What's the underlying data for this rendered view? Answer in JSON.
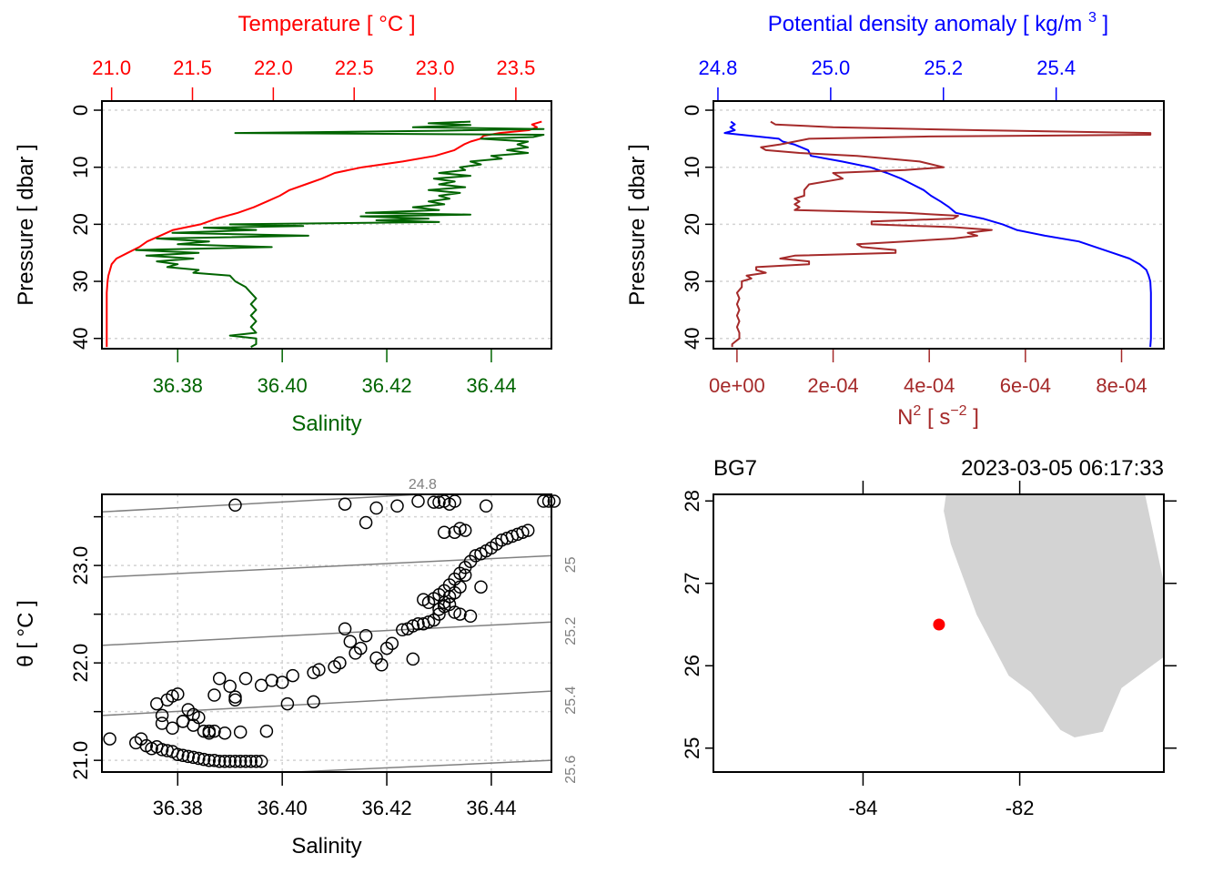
{
  "chart_data": [
    {
      "id": "profile_TS",
      "type": "line",
      "title": "",
      "top_axis": {
        "label": "Temperature [ °C ]",
        "ticks": [
          "21.0",
          "21.5",
          "22.0",
          "22.5",
          "23.0",
          "23.5"
        ],
        "range": [
          20.94,
          23.72
        ],
        "color": "#ff0000"
      },
      "bottom_axis": {
        "label": "Salinity",
        "ticks": [
          "36.38",
          "36.40",
          "36.42",
          "36.44"
        ],
        "range": [
          36.3655,
          36.4515
        ],
        "color": "#006400"
      },
      "ylabel": "Pressure [ dbar ]",
      "yticks": [
        "0",
        "10",
        "20",
        "30",
        "40"
      ],
      "ylim": [
        41.8,
        -1.6
      ],
      "grid": true,
      "series": [
        {
          "name": "Temperature",
          "color": "#ff0000",
          "axis": "top",
          "pressure": [
            2.0,
            2.5,
            3.0,
            3.5,
            4.0,
            4.5,
            5.0,
            5.5,
            6.0,
            7.0,
            8.0,
            9.0,
            10.0,
            11.0,
            12.0,
            13.0,
            14.0,
            15.0,
            16.0,
            17.0,
            18.0,
            19.0,
            20.0,
            21.0,
            22.0,
            23.0,
            24.0,
            25.0,
            26.0,
            27.0,
            28.0,
            29.0,
            30.0,
            32.0,
            35.0,
            38.0,
            40.0,
            41.5
          ],
          "values": [
            23.66,
            23.6,
            23.63,
            23.58,
            23.4,
            23.3,
            23.28,
            23.22,
            23.18,
            23.12,
            23.0,
            22.8,
            22.55,
            22.38,
            22.3,
            22.2,
            22.1,
            22.04,
            21.96,
            21.88,
            21.78,
            21.65,
            21.55,
            21.38,
            21.3,
            21.22,
            21.17,
            21.1,
            21.03,
            21.0,
            20.99,
            20.98,
            20.975,
            20.97,
            20.97,
            20.97,
            20.97,
            20.97
          ]
        },
        {
          "name": "Salinity",
          "color": "#006400",
          "axis": "bottom",
          "pressure": [
            2.0,
            2.3,
            2.6,
            3.0,
            3.3,
            3.6,
            4.0,
            4.3,
            4.7,
            5.0,
            5.5,
            6.0,
            6.5,
            7.0,
            7.5,
            8.0,
            8.5,
            9.0,
            9.5,
            10.0,
            10.5,
            11.0,
            11.5,
            12.0,
            12.5,
            13.0,
            13.5,
            14.0,
            14.5,
            15.0,
            15.5,
            16.0,
            16.5,
            17.0,
            17.5,
            18.0,
            18.3,
            18.6,
            19.0,
            19.3,
            19.6,
            20.0,
            20.3,
            20.6,
            21.0,
            21.5,
            22.0,
            22.5,
            23.0,
            23.5,
            24.0,
            24.5,
            25.0,
            25.5,
            26.0,
            26.5,
            27.0,
            27.5,
            28.0,
            28.5,
            29.0,
            30.0,
            31.0,
            32.0,
            33.0,
            34.0,
            35.0,
            36.0,
            37.0,
            38.0,
            39.0,
            39.5,
            40.0,
            41.0,
            41.5
          ],
          "values": [
            36.436,
            36.428,
            36.436,
            36.425,
            36.45,
            36.43,
            36.391,
            36.45,
            36.448,
            36.438,
            36.447,
            36.445,
            36.447,
            36.443,
            36.447,
            36.44,
            36.442,
            36.436,
            36.438,
            36.434,
            36.435,
            36.43,
            36.436,
            36.429,
            36.433,
            36.43,
            36.435,
            36.428,
            36.434,
            36.43,
            36.432,
            36.428,
            36.431,
            36.425,
            36.43,
            36.416,
            36.436,
            36.415,
            36.428,
            36.418,
            36.43,
            36.39,
            36.404,
            36.385,
            36.395,
            36.379,
            36.405,
            36.376,
            36.386,
            36.38,
            36.398,
            36.372,
            36.384,
            36.374,
            36.383,
            36.376,
            36.38,
            36.378,
            36.384,
            36.383,
            36.39,
            36.391,
            36.393,
            36.394,
            36.395,
            36.394,
            36.395,
            36.394,
            36.395,
            36.394,
            36.395,
            36.39,
            36.395,
            36.395,
            36.394
          ]
        }
      ]
    },
    {
      "id": "profile_sigma_N2",
      "type": "line",
      "title": "",
      "top_axis": {
        "label": "Potential density anomaly [ kg/m3 ]",
        "ticks": [
          "24.8",
          "25.0",
          "25.2",
          "25.4"
        ],
        "range": [
          24.792,
          25.591
        ],
        "color": "#0000ff"
      },
      "bottom_axis": {
        "label": "N2 [ s-2 ]",
        "ticks": [
          "0e+00",
          "2e-04",
          "4e-04",
          "6e-04",
          "8e-04"
        ],
        "range": [
          -4.9e-05,
          0.000888
        ],
        "color": "#a52a2a"
      },
      "ylabel": "Pressure [ dbar ]",
      "yticks": [
        "0",
        "10",
        "20",
        "30",
        "40"
      ],
      "ylim": [
        41.8,
        -1.6
      ],
      "grid": true,
      "series": [
        {
          "name": "Potential density anomaly",
          "color": "#0000ff",
          "axis": "top",
          "pressure": [
            2.0,
            2.5,
            3.0,
            3.5,
            4.0,
            4.5,
            5.0,
            5.5,
            6.0,
            7.0,
            8.0,
            9.0,
            10.0,
            11.0,
            12.0,
            13.0,
            14.0,
            15.0,
            16.0,
            17.0,
            18.0,
            19.0,
            20.0,
            21.0,
            22.0,
            23.0,
            24.0,
            25.0,
            26.0,
            27.0,
            28.0,
            29.0,
            30.0,
            32.0,
            35.0,
            38.0,
            40.0,
            41.5
          ],
          "values": [
            24.823,
            24.83,
            24.822,
            24.83,
            24.812,
            24.86,
            24.908,
            24.915,
            24.935,
            24.96,
            24.965,
            25.02,
            25.07,
            25.1,
            25.125,
            25.145,
            25.165,
            25.178,
            25.195,
            25.21,
            25.222,
            25.27,
            25.305,
            25.33,
            25.38,
            25.44,
            25.47,
            25.5,
            25.53,
            25.548,
            25.56,
            25.564,
            25.567,
            25.568,
            25.568,
            25.568,
            25.568,
            25.567
          ]
        },
        {
          "name": "N2",
          "color": "#a52a2a",
          "axis": "bottom",
          "pressure": [
            2.0,
            2.5,
            3.0,
            3.5,
            4.0,
            4.3,
            4.6,
            5.0,
            5.5,
            6.0,
            6.5,
            7.0,
            7.5,
            8.0,
            9.0,
            10.0,
            10.5,
            11.0,
            11.5,
            12.0,
            13.0,
            14.0,
            15.0,
            15.5,
            16.0,
            16.5,
            17.0,
            17.5,
            18.0,
            18.5,
            19.0,
            19.5,
            20.0,
            20.5,
            21.0,
            21.5,
            22.0,
            22.5,
            23.0,
            23.5,
            24.0,
            24.5,
            25.0,
            25.5,
            26.0,
            26.5,
            27.0,
            27.5,
            28.0,
            28.5,
            29.0,
            29.5,
            30.0,
            31.0,
            32.0,
            33.0,
            34.0,
            35.0,
            36.0,
            37.0,
            38.0,
            39.0,
            40.0,
            41.0,
            41.5
          ],
          "values": [
            7e-05,
            8e-05,
            0.0002,
            0.0005,
            0.00086,
            0.00086,
            0.0004,
            0.00015,
            0.00012,
            9e-05,
            5e-05,
            6e-05,
            0.00013,
            0.00025,
            0.00038,
            0.00043,
            0.00035,
            0.0002,
            0.00021,
            0.00022,
            0.00015,
            0.00014,
            0.00014,
            0.00012,
            0.00013,
            0.00012,
            0.00013,
            0.00012,
            0.00035,
            0.00046,
            0.00045,
            0.00028,
            0.00028,
            0.00045,
            0.00053,
            0.00048,
            0.0005,
            0.00045,
            0.00035,
            0.00025,
            0.00026,
            0.00033,
            0.00033,
            0.00012,
            9e-05,
            0.00015,
            0.00015,
            4e-05,
            4e-05,
            6e-05,
            2e-05,
            3e-05,
            1e-05,
            1e-05,
            0.0,
            5e-06,
            0.0,
            5e-06,
            0.0,
            5e-06,
            0.0,
            5e-06,
            5e-06,
            -1e-05,
            -1e-05
          ]
        }
      ]
    },
    {
      "id": "TS_diagram",
      "type": "scatter",
      "title": "",
      "xlabel": "Salinity",
      "ylabel": "θ [ °C ]",
      "xticks": [
        "36.38",
        "36.40",
        "36.42",
        "36.44"
      ],
      "yticks": [
        "21.0",
        "22.0",
        "23.0"
      ],
      "xlim": [
        36.3655,
        36.4515
      ],
      "ylim": [
        20.88,
        23.73
      ],
      "grid": true,
      "isopycnals": {
        "color": "#808080",
        "levels": [
          "24.8",
          "25",
          "25.2",
          "25.4",
          "25.6"
        ],
        "lines": [
          {
            "label": "24.8",
            "s": [
              36.3655,
              36.4265
            ],
            "theta": [
              23.55,
              23.73
            ]
          },
          {
            "label": "25",
            "s": [
              36.3655,
              36.4515
            ],
            "theta": [
              22.88,
              23.1
            ]
          },
          {
            "label": "25.2",
            "s": [
              36.3655,
              36.4515
            ],
            "theta": [
              22.18,
              22.42
            ]
          },
          {
            "label": "25.4",
            "s": [
              36.3655,
              36.4515
            ],
            "theta": [
              21.46,
              21.71
            ]
          },
          {
            "label": "25.6",
            "s": [
              36.4025,
              36.4515
            ],
            "theta": [
              20.88,
              21.0
            ]
          }
        ]
      },
      "points": {
        "s": [
          36.367,
          36.372,
          36.373,
          36.374,
          36.375,
          36.376,
          36.377,
          36.378,
          36.379,
          36.38,
          36.381,
          36.382,
          36.383,
          36.384,
          36.385,
          36.386,
          36.387,
          36.388,
          36.389,
          36.39,
          36.391,
          36.392,
          36.393,
          36.394,
          36.395,
          36.396,
          36.376,
          36.377,
          36.378,
          36.379,
          36.38,
          36.381,
          36.382,
          36.383,
          36.384,
          36.385,
          36.386,
          36.387,
          36.389,
          36.392,
          36.397,
          36.377,
          36.379,
          36.381,
          36.383,
          36.386,
          36.387,
          36.388,
          36.39,
          36.391,
          36.391,
          36.393,
          36.396,
          36.398,
          36.4,
          36.402,
          36.406,
          36.407,
          36.41,
          36.411,
          36.412,
          36.413,
          36.414,
          36.415,
          36.416,
          36.418,
          36.419,
          36.42,
          36.421,
          36.423,
          36.425,
          36.401,
          36.406,
          36.424,
          36.425,
          36.426,
          36.427,
          36.428,
          36.429,
          36.43,
          36.431,
          36.432,
          36.433,
          36.434,
          36.435,
          36.43,
          36.431,
          36.432,
          36.433,
          36.434,
          36.428,
          36.429,
          36.43,
          36.431,
          36.432,
          36.433,
          36.434,
          36.435,
          36.436,
          36.437,
          36.438,
          36.439,
          36.44,
          36.441,
          36.442,
          36.443,
          36.444,
          36.445,
          36.446,
          36.447,
          36.436,
          36.427,
          36.438,
          36.391,
          36.412,
          36.416,
          36.418,
          36.422,
          36.426,
          36.429,
          36.43,
          36.431,
          36.432,
          36.433,
          36.434,
          36.435,
          36.439,
          36.45,
          36.451,
          36.452,
          36.431,
          36.433
        ],
        "theta": [
          21.22,
          21.18,
          21.22,
          21.15,
          21.12,
          21.14,
          21.11,
          21.1,
          21.09,
          21.06,
          21.05,
          21.04,
          21.03,
          21.02,
          21.01,
          21.0,
          21.0,
          20.99,
          20.99,
          20.99,
          20.99,
          20.99,
          20.99,
          20.99,
          20.99,
          20.99,
          21.58,
          21.46,
          21.62,
          21.66,
          21.68,
          21.4,
          21.52,
          21.47,
          21.44,
          21.3,
          21.28,
          21.3,
          21.28,
          21.29,
          21.3,
          21.38,
          21.33,
          21.4,
          21.36,
          21.3,
          21.67,
          21.84,
          21.76,
          21.62,
          21.65,
          21.84,
          21.77,
          21.82,
          21.8,
          21.87,
          21.9,
          21.93,
          21.96,
          22.0,
          22.35,
          22.22,
          22.1,
          22.15,
          22.28,
          22.05,
          21.98,
          22.15,
          22.2,
          22.34,
          22.04,
          21.58,
          21.6,
          22.35,
          22.38,
          22.4,
          22.4,
          22.42,
          22.44,
          22.5,
          22.62,
          22.68,
          22.72,
          22.78,
          22.9,
          22.55,
          22.58,
          22.6,
          22.52,
          22.5,
          22.62,
          22.66,
          22.7,
          22.74,
          22.8,
          22.86,
          22.92,
          22.98,
          23.04,
          23.1,
          23.12,
          23.15,
          23.18,
          23.22,
          23.26,
          23.28,
          23.3,
          23.32,
          23.34,
          23.36,
          22.48,
          22.65,
          22.78,
          23.62,
          23.63,
          23.44,
          23.59,
          23.61,
          23.66,
          23.65,
          23.65,
          23.66,
          23.63,
          23.66,
          23.38,
          23.36,
          23.61,
          23.66,
          23.66,
          23.66,
          23.34,
          23.34
        ]
      }
    },
    {
      "id": "station_map",
      "type": "scatter",
      "title_left": "BG7",
      "title_right": "2023-03-05 06:17:33",
      "xticks": [
        "-84",
        "-82"
      ],
      "yticks": [
        "25",
        "26",
        "27",
        "28"
      ],
      "xlim": [
        -85.91,
        -80.16
      ],
      "ylim": [
        24.71,
        28.08
      ],
      "land_color": "#d3d3d3",
      "station": {
        "lon": -83.03,
        "lat": 26.5,
        "color": "#ff0000"
      },
      "coastline": {
        "lon": [
          -82.94,
          -82.97,
          -82.88,
          -82.55,
          -82.14,
          -81.86,
          -81.48,
          -81.3,
          -80.94,
          -80.7,
          -80.17,
          -80.17,
          -80.4
        ],
        "lat": [
          28.08,
          27.88,
          27.48,
          26.62,
          25.88,
          25.68,
          25.22,
          25.13,
          25.2,
          25.73,
          26.1,
          27.05,
          28.08
        ]
      }
    }
  ]
}
